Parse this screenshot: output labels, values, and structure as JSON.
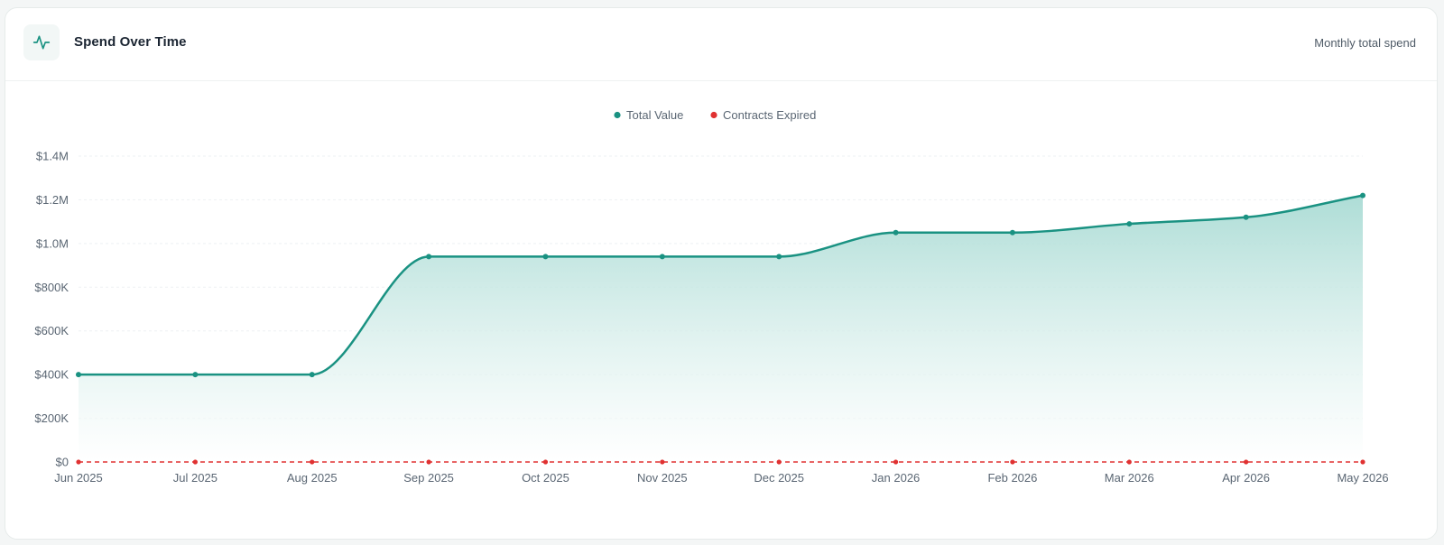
{
  "header": {
    "title": "Spend Over Time",
    "subtitle": "Monthly total spend",
    "icon": "activity-pulse-icon"
  },
  "colors": {
    "accent": "#1a9282",
    "expired": "#e03131",
    "area_top": "#a9dbd4",
    "area_bottom": "#ffffff"
  },
  "chart_data": {
    "type": "area",
    "categories": [
      "Jun 2025",
      "Jul 2025",
      "Aug 2025",
      "Sep 2025",
      "Oct 2025",
      "Nov 2025",
      "Dec 2025",
      "Jan 2026",
      "Feb 2026",
      "Mar 2026",
      "Apr 2026",
      "May 2026"
    ],
    "series": [
      {
        "name": "Total Value",
        "color": "#1a9282",
        "values": [
          400000,
          400000,
          400000,
          940000,
          940000,
          940000,
          940000,
          1050000,
          1050000,
          1090000,
          1120000,
          1220000
        ]
      },
      {
        "name": "Contracts Expired",
        "color": "#e03131",
        "dashed": true,
        "values": [
          0,
          0,
          0,
          0,
          0,
          0,
          0,
          0,
          0,
          0,
          0,
          0
        ]
      }
    ],
    "y_ticks": [
      0,
      200000,
      400000,
      600000,
      800000,
      1000000,
      1200000,
      1400000
    ],
    "y_tick_labels": [
      "$0",
      "$200K",
      "$400K",
      "$600K",
      "$800K",
      "$1.0M",
      "$1.2M",
      "$1.4M"
    ],
    "ylim": [
      0,
      1400000
    ],
    "grid": "horizontal",
    "legend_position": "top-center"
  }
}
